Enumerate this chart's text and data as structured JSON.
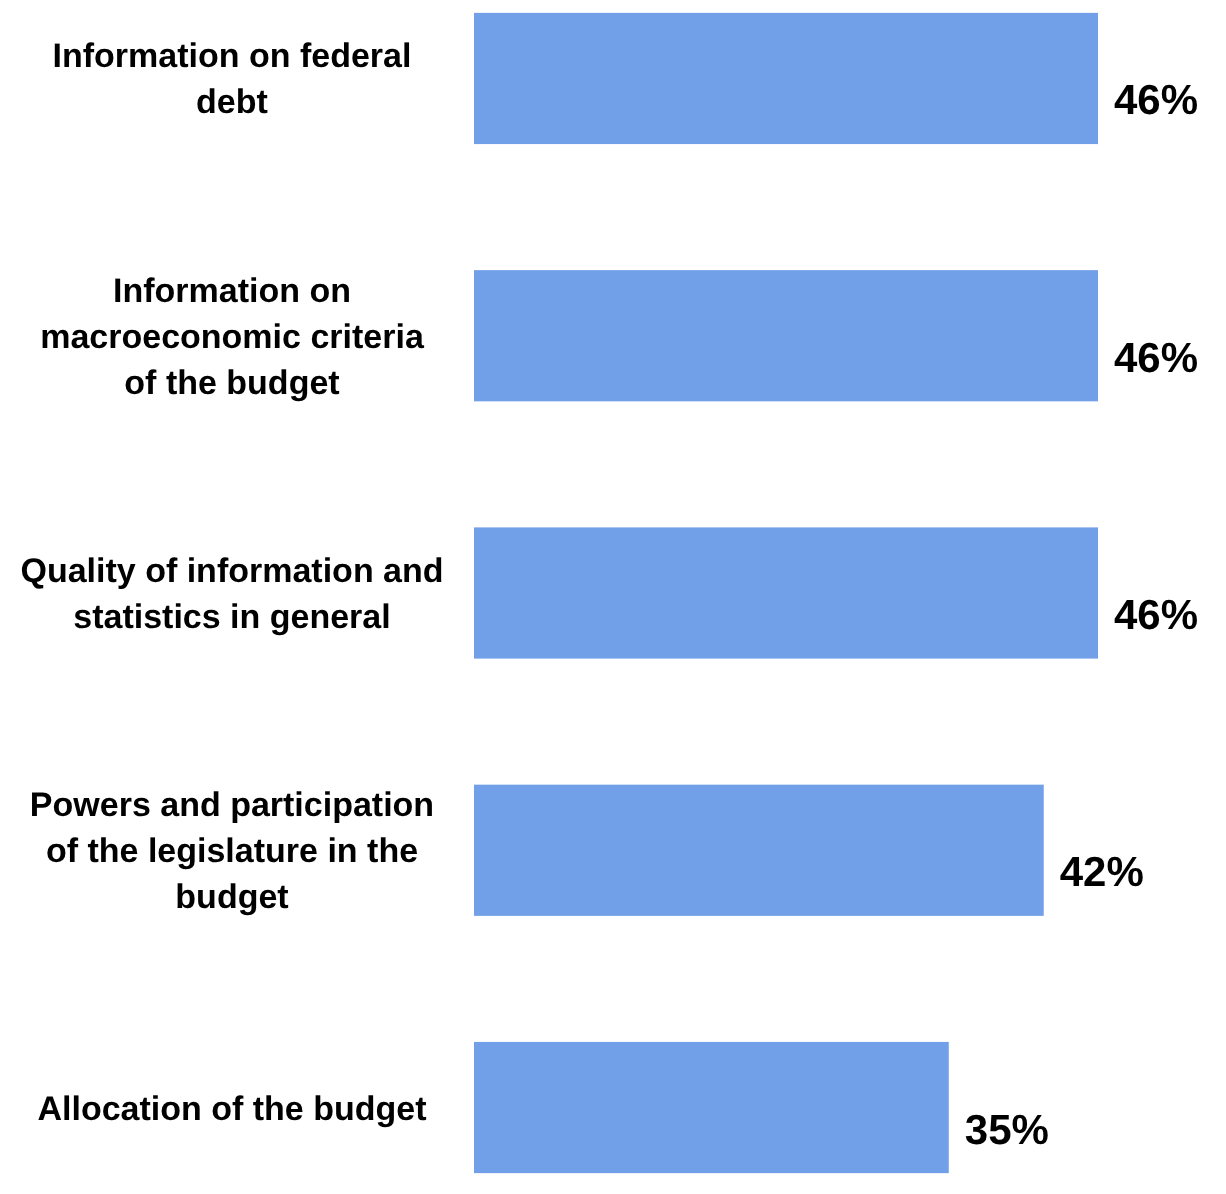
{
  "chart_data": {
    "type": "bar",
    "orientation": "horizontal",
    "categories": [
      "Information on federal debt",
      "Information on macroeconomic criteria of the budget",
      "Quality of information and statistics in general",
      "Powers and participation of the legislature in the budget",
      "Allocation of the budget"
    ],
    "values": [
      46,
      46,
      46,
      42,
      35
    ],
    "value_labels": [
      "46%",
      "46%",
      "46%",
      "42%",
      "35%"
    ],
    "color": "#72a0e8"
  }
}
